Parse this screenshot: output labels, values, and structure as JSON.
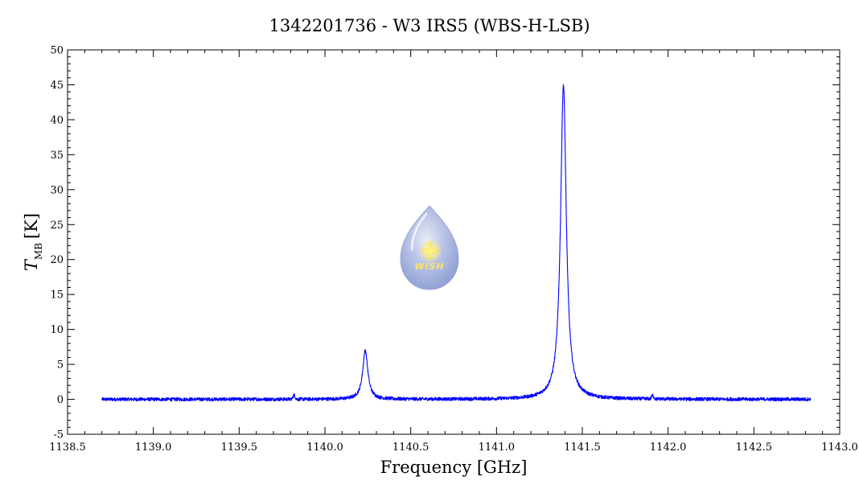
{
  "chart_data": {
    "type": "line",
    "title": "1342201736 - W3 IRS5 (WBS-H-LSB)",
    "xlabel": "Frequency [GHz]",
    "ylabel_main": "T",
    "ylabel_sub": "MB",
    "ylabel_unit": "[K]",
    "xlim": [
      1138.5,
      1143.0
    ],
    "ylim": [
      -5,
      50
    ],
    "x_ticks": [
      "1138.5",
      "1139.0",
      "1139.5",
      "1140.0",
      "1140.5",
      "1141.0",
      "1141.5",
      "1142.0",
      "1142.5",
      "1143.0"
    ],
    "y_ticks": [
      "-5",
      "0",
      "5",
      "10",
      "15",
      "20",
      "25",
      "30",
      "35",
      "40",
      "45",
      "50"
    ],
    "grid": false,
    "series": [
      {
        "color": "#0000ff",
        "x_range": [
          1138.7,
          1142.83
        ],
        "baseline": 0.0,
        "noise_amplitude": 0.25,
        "features": [
          {
            "type": "lorentzian",
            "center": 1140.235,
            "peak": 7.0,
            "hwhm": 0.018
          },
          {
            "type": "lorentzian",
            "center": 1141.39,
            "peak": 45.0,
            "hwhm": 0.02
          },
          {
            "type": "gaussian",
            "center": 1139.82,
            "peak": 0.6,
            "sigma": 0.006
          },
          {
            "type": "gaussian",
            "center": 1141.91,
            "peak": 0.5,
            "sigma": 0.006
          }
        ]
      }
    ]
  },
  "logo": {
    "text": "WISH",
    "icon": "water-drop-star-logo"
  }
}
